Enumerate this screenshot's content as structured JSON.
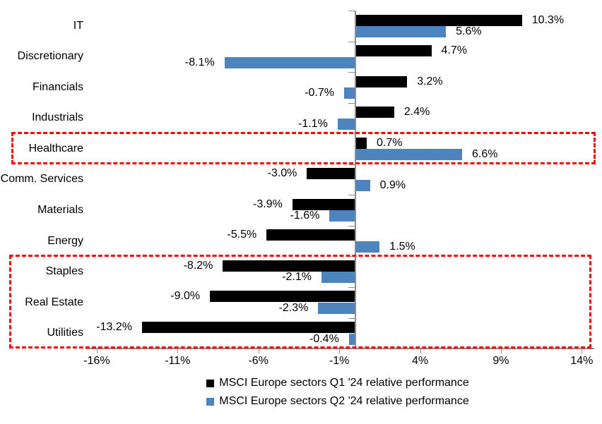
{
  "chart_data": {
    "type": "bar",
    "orientation": "horizontal",
    "title": "",
    "categories": [
      "IT",
      "Discretionary",
      "Financials",
      "Industrials",
      "Healthcare",
      "Comm. Services",
      "Materials",
      "Energy",
      "Staples",
      "Real Estate",
      "Utilities"
    ],
    "series": [
      {
        "name": "MSCI Europe sectors Q1 '24 relative performance",
        "color": "#000000",
        "values": [
          10.3,
          4.7,
          3.2,
          2.4,
          0.7,
          -3.0,
          -3.9,
          -5.5,
          -8.2,
          -9.0,
          -13.2
        ],
        "labels": [
          "10.3%",
          "4.7%",
          "3.2%",
          "2.4%",
          "0.7%",
          "-3.0%",
          "-3.9%",
          "-5.5%",
          "-8.2%",
          "-9.0%",
          "-13.2%"
        ]
      },
      {
        "name": "MSCI Europe sectors Q2 '24 relative performance",
        "color": "#4E84BE",
        "values": [
          5.6,
          -8.1,
          -0.7,
          -1.1,
          6.6,
          0.9,
          -1.6,
          1.5,
          -2.1,
          -2.3,
          -0.4
        ],
        "labels": [
          "5.6%",
          "-8.1%",
          "-0.7%",
          "-1.1%",
          "6.6%",
          "0.9%",
          "-1.6%",
          "1.5%",
          "-2.1%",
          "-2.3%",
          "-0.4%"
        ]
      }
    ],
    "x_axis": {
      "min": -16,
      "max": 14,
      "unit": "%",
      "ticks": [
        -16,
        -11,
        -6,
        -1,
        4,
        9,
        14
      ],
      "tick_labels": [
        "-16%",
        "-11%",
        "-6%",
        "-1%",
        "4%",
        "9%",
        "14%"
      ]
    },
    "grid": false,
    "legend_position": "bottom",
    "axis_color": "#8C8C8C",
    "annotations": [
      {
        "type": "highlight-box",
        "style": "dashed",
        "color": "#FF0000",
        "rows": [
          "Healthcare"
        ]
      },
      {
        "type": "highlight-box",
        "style": "dashed",
        "color": "#FF0000",
        "rows": [
          "Staples",
          "Real Estate",
          "Utilities"
        ]
      }
    ]
  }
}
